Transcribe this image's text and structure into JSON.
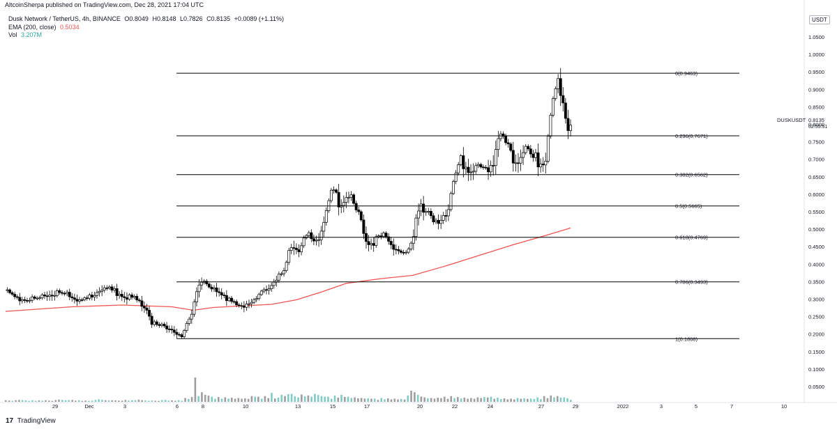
{
  "header": {
    "published_line": "AltcoinSherpa published on TradingView.com, Dec 28, 2021 17:04 UTC",
    "symbol_title": "Dusk Network / TetherUS, 4h, BINANCE",
    "ohlc": {
      "open": "O0.8049",
      "high": "H0.8148",
      "low": "L0.7826",
      "close": "C0.8135",
      "change": "+0.0089 (+1.11%)"
    },
    "ema_label": "EMA (200, close)",
    "ema_value": "0.5034",
    "vol_label": "Vol",
    "vol_value": "3.207M"
  },
  "currency_button": "USDT",
  "footer": {
    "logo": "17",
    "brand": "TradingView"
  },
  "colors": {
    "background": "#ffffff",
    "up_candle": "#ffffff",
    "down_candle": "#000000",
    "wick": "#000000",
    "ema": "#ef5350",
    "vol_up": "#80cbc4",
    "vol_down": "#9e9e9e",
    "fib_line": "#000000"
  },
  "chart_data": {
    "type": "candlestick",
    "symbol": "DUSKUSDT",
    "timeframe": "4h",
    "ylim": [
      0.03,
      1.08
    ],
    "y_ticks": [
      "1.0500",
      "1.0000",
      "0.9500",
      "0.9000",
      "0.8500",
      "0.8000",
      "0.7500",
      "0.7000",
      "0.6500",
      "0.6000",
      "0.5500",
      "0.5000",
      "0.4500",
      "0.4000",
      "0.3500",
      "0.3000",
      "0.2500",
      "0.2000",
      "0.1500",
      "0.1000",
      "0.0500"
    ],
    "x_ticks": [
      "29",
      "Dec",
      "3",
      "6",
      "8",
      "10",
      "13",
      "15",
      "17",
      "20",
      "22",
      "24",
      "27",
      "29",
      "2022",
      "3",
      "5",
      "7",
      "10"
    ],
    "price_label": {
      "symbol": "DUSKUSDT",
      "price": "0.8135",
      "countdown": "02:55:51"
    },
    "fib_levels": [
      {
        "label": "0(0.9463)",
        "value": 0.9463
      },
      {
        "label": "0.236(0.7671)",
        "value": 0.7671
      },
      {
        "label": "0.382(0.6562)",
        "value": 0.6562
      },
      {
        "label": "0.5(0.5665)",
        "value": 0.5665
      },
      {
        "label": "0.618(0.4769)",
        "value": 0.4769
      },
      {
        "label": "0.786(0.3493)",
        "value": 0.3493
      },
      {
        "label": "1(0.1868)",
        "value": 0.1868
      }
    ],
    "close_path": [
      [
        0,
        0.325
      ],
      [
        6,
        0.31
      ],
      [
        12,
        0.3
      ],
      [
        20,
        0.305
      ],
      [
        26,
        0.322
      ],
      [
        32,
        0.322
      ],
      [
        40,
        0.312
      ],
      [
        46,
        0.3
      ],
      [
        52,
        0.312
      ],
      [
        58,
        0.338
      ],
      [
        62,
        0.335
      ],
      [
        67,
        0.322
      ],
      [
        72,
        0.315
      ],
      [
        78,
        0.305
      ],
      [
        84,
        0.285
      ],
      [
        86,
        0.27
      ],
      [
        88,
        0.235
      ],
      [
        92,
        0.228
      ],
      [
        96,
        0.225
      ],
      [
        100,
        0.22
      ],
      [
        104,
        0.203
      ],
      [
        106,
        0.193
      ],
      [
        108,
        0.215
      ],
      [
        111,
        0.252
      ],
      [
        113,
        0.285
      ],
      [
        116,
        0.355
      ],
      [
        118,
        0.36
      ],
      [
        120,
        0.345
      ],
      [
        123,
        0.332
      ],
      [
        126,
        0.338
      ],
      [
        130,
        0.322
      ],
      [
        134,
        0.305
      ],
      [
        137,
        0.292
      ],
      [
        140,
        0.283
      ],
      [
        144,
        0.29
      ],
      [
        147,
        0.298
      ],
      [
        150,
        0.3
      ],
      [
        153,
        0.318
      ],
      [
        156,
        0.332
      ],
      [
        160,
        0.345
      ],
      [
        163,
        0.365
      ],
      [
        166,
        0.37
      ],
      [
        168,
        0.378
      ],
      [
        170,
        0.428
      ],
      [
        173,
        0.47
      ],
      [
        176,
        0.445
      ],
      [
        178,
        0.46
      ],
      [
        182,
        0.49
      ],
      [
        185,
        0.475
      ],
      [
        188,
        0.482
      ],
      [
        190,
        0.508
      ],
      [
        192,
        0.545
      ],
      [
        194,
        0.575
      ],
      [
        196,
        0.615
      ],
      [
        198,
        0.622
      ],
      [
        200,
        0.59
      ],
      [
        202,
        0.585
      ],
      [
        204,
        0.6
      ],
      [
        206,
        0.612
      ],
      [
        208,
        0.59
      ],
      [
        210,
        0.57
      ],
      [
        212,
        0.55
      ],
      [
        214,
        0.525
      ],
      [
        216,
        0.495
      ],
      [
        218,
        0.475
      ],
      [
        221,
        0.47
      ],
      [
        224,
        0.478
      ],
      [
        227,
        0.49
      ],
      [
        230,
        0.475
      ],
      [
        233,
        0.462
      ],
      [
        236,
        0.45
      ],
      [
        238,
        0.432
      ],
      [
        240,
        0.428
      ],
      [
        242,
        0.435
      ],
      [
        244,
        0.462
      ],
      [
        246,
        0.512
      ],
      [
        248,
        0.57
      ],
      [
        250,
        0.585
      ],
      [
        252,
        0.568
      ],
      [
        254,
        0.548
      ],
      [
        257,
        0.525
      ],
      [
        260,
        0.53
      ],
      [
        263,
        0.545
      ],
      [
        266,
        0.56
      ],
      [
        268,
        0.6
      ],
      [
        270,
        0.65
      ],
      [
        272,
        0.682
      ],
      [
        274,
        0.71
      ],
      [
        276,
        0.695
      ],
      [
        279,
        0.685
      ],
      [
        282,
        0.69
      ],
      [
        285,
        0.68
      ],
      [
        288,
        0.672
      ],
      [
        290,
        0.685
      ],
      [
        293,
        0.7
      ],
      [
        295,
        0.755
      ],
      [
        297,
        0.79
      ],
      [
        299,
        0.765
      ],
      [
        301,
        0.752
      ],
      [
        303,
        0.73
      ],
      [
        306,
        0.712
      ],
      [
        309,
        0.72
      ],
      [
        312,
        0.745
      ],
      [
        315,
        0.73
      ],
      [
        318,
        0.712
      ],
      [
        321,
        0.705
      ],
      [
        323,
        0.698
      ],
      [
        325,
        0.72
      ],
      [
        327,
        0.785
      ],
      [
        329,
        0.86
      ],
      [
        331,
        0.905
      ],
      [
        333,
        0.925
      ],
      [
        335,
        0.905
      ],
      [
        337,
        0.83
      ],
      [
        339,
        0.8
      ],
      [
        340,
        0.8135
      ]
    ],
    "ema_path": [
      [
        0,
        0.265
      ],
      [
        40,
        0.278
      ],
      [
        70,
        0.283
      ],
      [
        100,
        0.278
      ],
      [
        113,
        0.268
      ],
      [
        125,
        0.276
      ],
      [
        140,
        0.28
      ],
      [
        160,
        0.285
      ],
      [
        175,
        0.298
      ],
      [
        190,
        0.32
      ],
      [
        205,
        0.345
      ],
      [
        225,
        0.358
      ],
      [
        245,
        0.368
      ],
      [
        265,
        0.395
      ],
      [
        285,
        0.425
      ],
      [
        305,
        0.455
      ],
      [
        325,
        0.482
      ],
      [
        340,
        0.5034
      ]
    ],
    "volume_series": {
      "name": "Vol",
      "last": "3.207M",
      "bars": [
        [
          0,
          0.5,
          0
        ],
        [
          8,
          0.6,
          1
        ],
        [
          16,
          0.5,
          0
        ],
        [
          24,
          0.5,
          1
        ],
        [
          32,
          0.7,
          0
        ],
        [
          40,
          0.6,
          0
        ],
        [
          48,
          0.4,
          1
        ],
        [
          56,
          0.8,
          0
        ],
        [
          64,
          0.5,
          1
        ],
        [
          72,
          0.6,
          0
        ],
        [
          80,
          0.7,
          0
        ],
        [
          88,
          0.4,
          0
        ],
        [
          96,
          0.6,
          0
        ],
        [
          104,
          0.5,
          0
        ],
        [
          108,
          1.2,
          1
        ],
        [
          112,
          1.5,
          0
        ],
        [
          115,
          9.5,
          1
        ],
        [
          116,
          1.8,
          0
        ],
        [
          118,
          3.0,
          1
        ],
        [
          120,
          2.2,
          0
        ],
        [
          124,
          1.6,
          0
        ],
        [
          128,
          1.5,
          1
        ],
        [
          132,
          1.4,
          0
        ],
        [
          136,
          1.3,
          1
        ],
        [
          140,
          1.2,
          0
        ],
        [
          144,
          1.1,
          1
        ],
        [
          148,
          1.8,
          1
        ],
        [
          152,
          1.6,
          0
        ],
        [
          156,
          1.8,
          1
        ],
        [
          160,
          2.8,
          1
        ],
        [
          163,
          1.5,
          0
        ],
        [
          166,
          2.2,
          0
        ],
        [
          169,
          3.0,
          1
        ],
        [
          172,
          2.5,
          1
        ],
        [
          175,
          2.0,
          0
        ],
        [
          178,
          2.3,
          1
        ],
        [
          182,
          2.0,
          0
        ],
        [
          186,
          2.5,
          0
        ],
        [
          190,
          1.8,
          1
        ],
        [
          194,
          1.6,
          0
        ],
        [
          198,
          2.0,
          0
        ],
        [
          202,
          2.2,
          1
        ],
        [
          206,
          1.6,
          0
        ],
        [
          210,
          1.4,
          0
        ],
        [
          214,
          1.2,
          1
        ],
        [
          218,
          1.1,
          0
        ],
        [
          222,
          1.0,
          1
        ],
        [
          226,
          1.2,
          0
        ],
        [
          230,
          1.1,
          0
        ],
        [
          234,
          1.0,
          1
        ],
        [
          238,
          0.9,
          0
        ],
        [
          242,
          2.0,
          1
        ],
        [
          244,
          3.5,
          1
        ],
        [
          246,
          3.0,
          1
        ],
        [
          248,
          2.2,
          0
        ],
        [
          252,
          1.4,
          0
        ],
        [
          256,
          1.2,
          1
        ],
        [
          260,
          1.3,
          0
        ],
        [
          264,
          1.6,
          1
        ],
        [
          268,
          1.8,
          1
        ],
        [
          272,
          1.5,
          0
        ],
        [
          276,
          1.3,
          1
        ],
        [
          280,
          1.2,
          0
        ],
        [
          284,
          1.4,
          1
        ],
        [
          288,
          1.5,
          0
        ],
        [
          292,
          1.6,
          1
        ],
        [
          296,
          1.3,
          0
        ],
        [
          300,
          1.1,
          0
        ],
        [
          304,
          1.0,
          1
        ],
        [
          308,
          1.2,
          0
        ],
        [
          312,
          1.1,
          1
        ],
        [
          316,
          1.0,
          0
        ],
        [
          320,
          1.4,
          1
        ],
        [
          324,
          1.8,
          1
        ],
        [
          328,
          2.0,
          1
        ],
        [
          332,
          1.8,
          0
        ],
        [
          336,
          1.4,
          0
        ],
        [
          340,
          0.6,
          1
        ]
      ]
    }
  }
}
